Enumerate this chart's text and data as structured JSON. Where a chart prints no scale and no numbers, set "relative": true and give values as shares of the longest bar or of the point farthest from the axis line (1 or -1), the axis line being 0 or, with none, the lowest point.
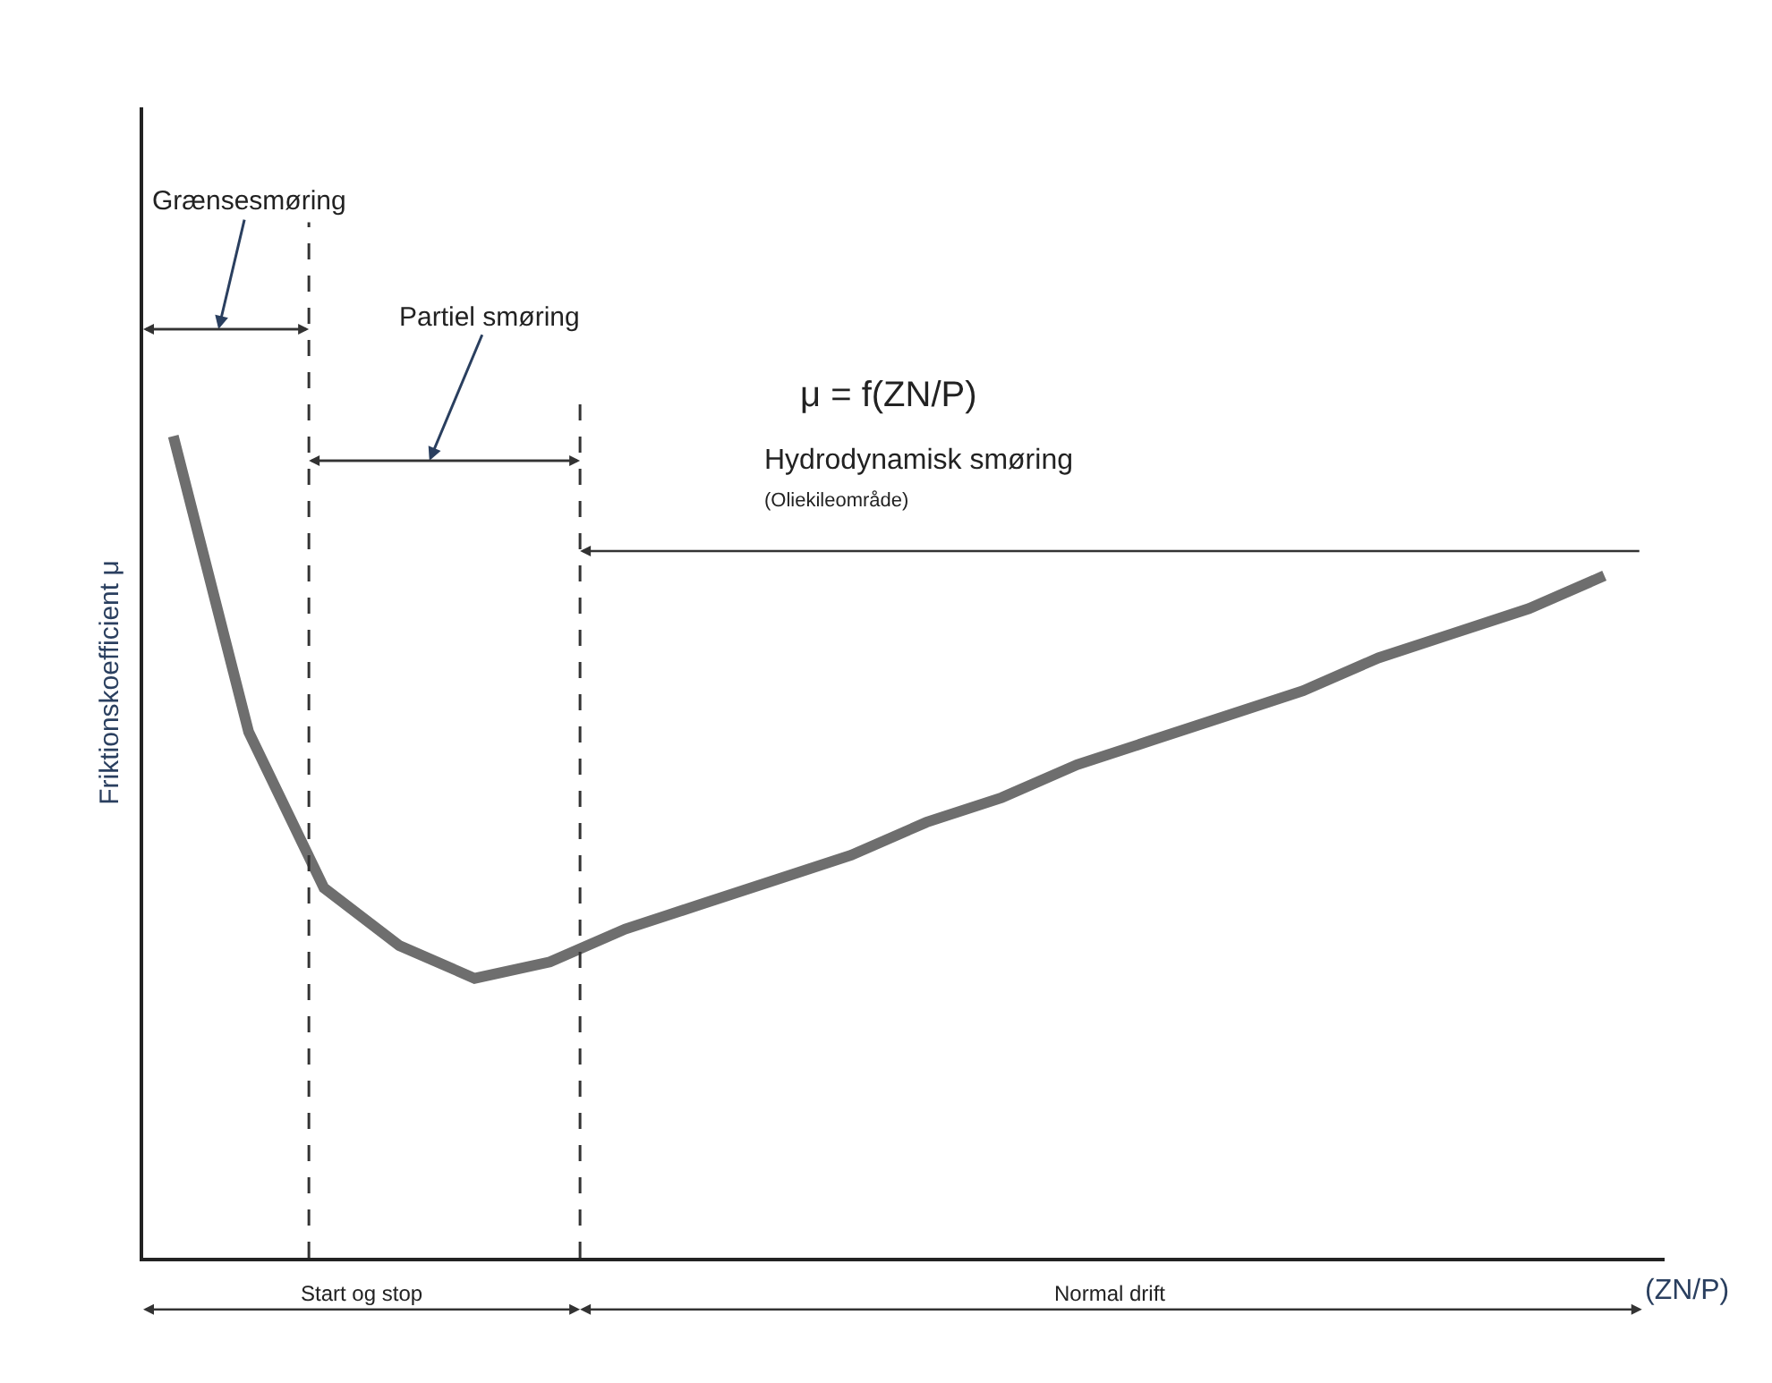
{
  "chart_data": {
    "type": "line",
    "relative": true,
    "xlabel": "(ZN/P)",
    "ylabel": "Friktionskoefficient μ",
    "categories": [
      null,
      null,
      null,
      null,
      null,
      null,
      null,
      null,
      null,
      null,
      null,
      null,
      null,
      null,
      null,
      null,
      null,
      null,
      null,
      null
    ],
    "series": [
      {
        "color": "#6e6e6e",
        "values": [
          1.0,
          0.64,
          0.45,
          0.38,
          0.34,
          0.36,
          0.4,
          0.43,
          0.46,
          0.49,
          0.53,
          0.56,
          0.6,
          0.63,
          0.66,
          0.69,
          0.73,
          0.76,
          0.79,
          0.83
        ]
      }
    ],
    "annotations": [
      "Grænsesmøring",
      "Partiel smøring",
      "μ = f(ZN/P)",
      "Hydrodynamisk smøring",
      "(Oliekileområde)",
      "Start og stop",
      "Normal drift"
    ],
    "marker": "none",
    "line_style": "solid"
  }
}
